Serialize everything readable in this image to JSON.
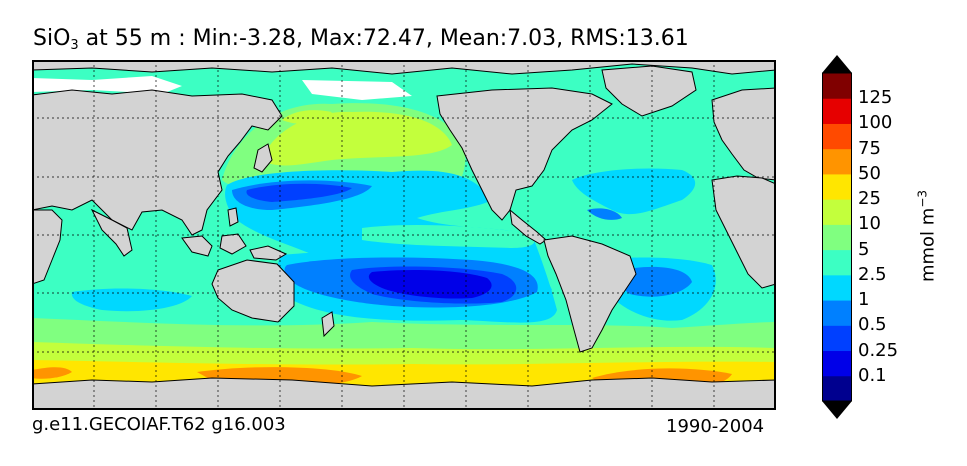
{
  "title": {
    "variable": "SiO",
    "subscript": "3",
    "rest": " at 55 m : Min:-3.28, Max:72.47, Mean:7.03, RMS:13.61"
  },
  "footer": {
    "case": "g.e11.GECOIAF.T62 g16.003",
    "years": "1990-2004"
  },
  "colorbar": {
    "unit": "mmol m",
    "unit_exp": "−3",
    "bins": [
      {
        "color": "#00008f"
      },
      {
        "color": "#0000e8"
      },
      {
        "color": "#0040ff"
      },
      {
        "color": "#0080ff"
      },
      {
        "color": "#00d8ff"
      },
      {
        "color": "#3cffc3"
      },
      {
        "color": "#80ff80"
      },
      {
        "color": "#c3ff3c"
      },
      {
        "color": "#ffe600"
      },
      {
        "color": "#ff9400"
      },
      {
        "color": "#ff4a00"
      },
      {
        "color": "#e60000"
      },
      {
        "color": "#800000"
      }
    ],
    "labels": [
      "0.1",
      "0.25",
      "0.5",
      "1",
      "2.5",
      "5",
      "10",
      "25",
      "50",
      "75",
      "100",
      "125"
    ]
  },
  "map": {
    "land_color": "#d3d3d3",
    "grid": true
  }
}
